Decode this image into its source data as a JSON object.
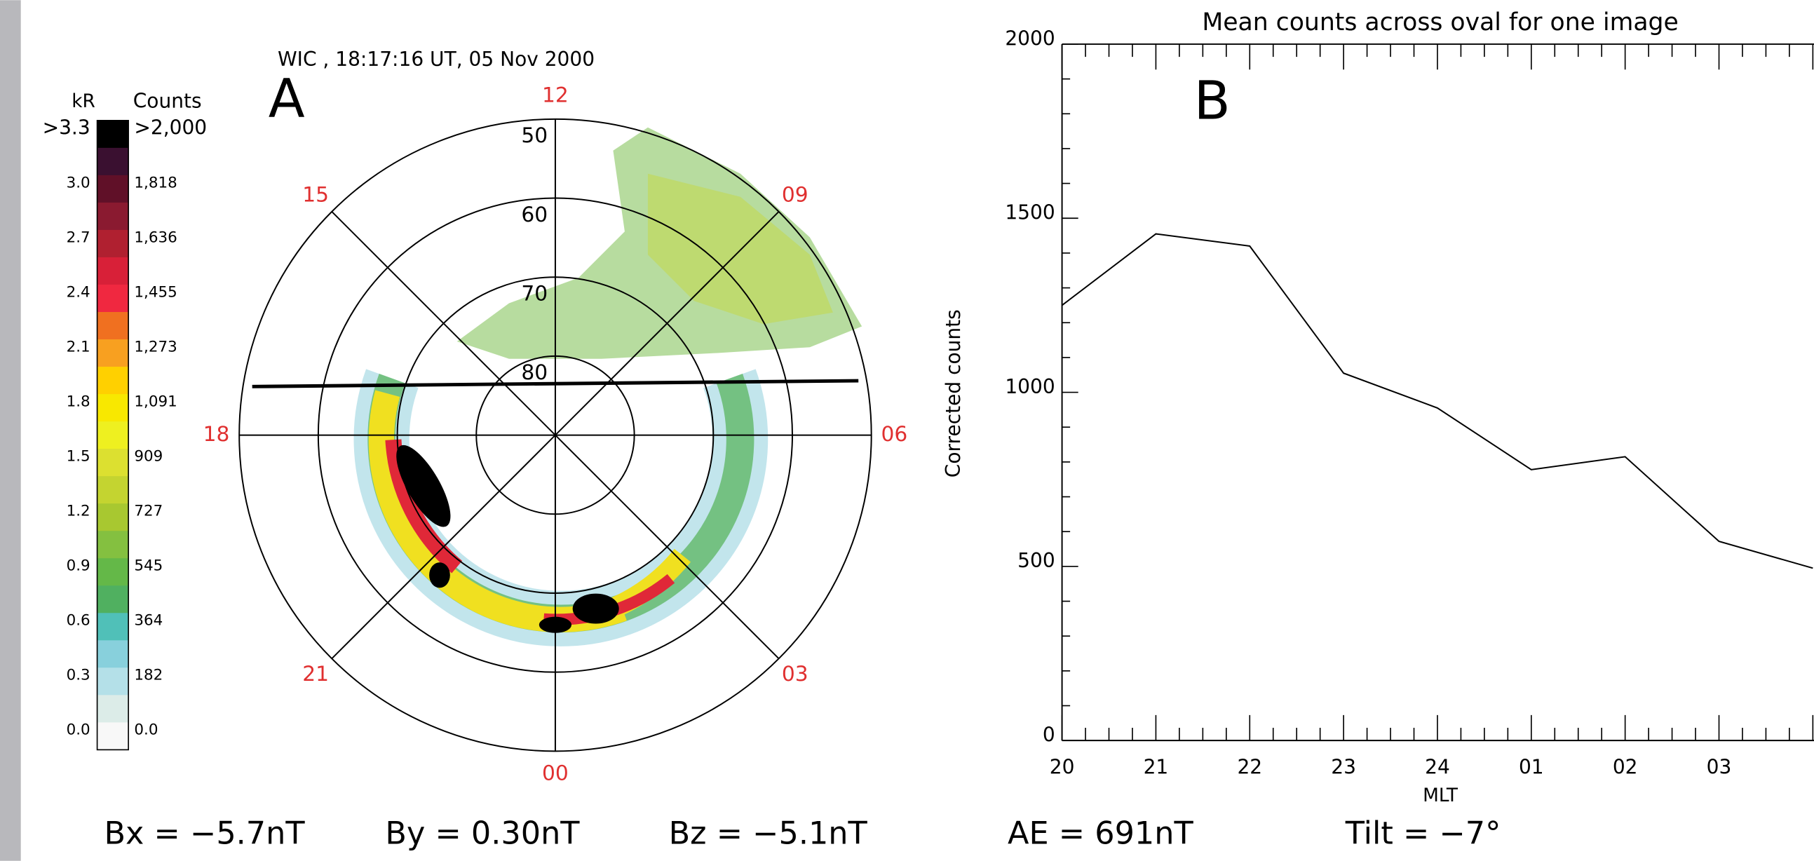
{
  "panel_a": {
    "title": "WIC , 18:17:16 UT, 05 Nov 2000",
    "letter": "A",
    "colorbar": {
      "kr_header": "kR",
      "counts_header": "Counts",
      "kr_labels": [
        ">3.3",
        "3.0",
        "2.7",
        "2.4",
        "2.1",
        "1.8",
        "1.5",
        "1.2",
        "0.9",
        "0.6",
        "0.3",
        "0.0"
      ],
      "count_labels": [
        ">2,000",
        "1,818",
        "1,636",
        "1,455",
        "1,273",
        "1,091",
        "909",
        "727",
        "545",
        "364",
        "182",
        "0.0"
      ],
      "colors": [
        "#000000",
        "#3a1030",
        "#601028",
        "#8a1a30",
        "#b02030",
        "#d82038",
        "#f02840",
        "#f07020",
        "#f8a020",
        "#ffd000",
        "#f8e800",
        "#eef020",
        "#dce030",
        "#c4d430",
        "#a8c830",
        "#84c040",
        "#64b848",
        "#50b060",
        "#50c0b8",
        "#88d0dc",
        "#b4e0e8",
        "#dcece8",
        "#f8f8f8"
      ]
    },
    "latitude_labels": [
      "50",
      "60",
      "70",
      "80"
    ],
    "mlt_labels": [
      "00",
      "03",
      "06",
      "09",
      "12",
      "15",
      "18",
      "21"
    ]
  },
  "chart_data": {
    "type": "line",
    "title": "Mean counts across oval for one image",
    "annotation": "B",
    "xlabel": "MLT",
    "ylabel": "Corrected counts",
    "categories": [
      "20",
      "21",
      "22",
      "23",
      "24",
      "01",
      "02",
      "03",
      null
    ],
    "values": [
      1250,
      1455,
      1420,
      1055,
      955,
      778,
      815,
      572,
      495
    ],
    "color": "#000000",
    "ylim": [
      0,
      2000
    ],
    "yticks": [
      0,
      500,
      1000,
      1500,
      2000
    ]
  },
  "footer": {
    "bx": "Bx = −5.7nT",
    "by": "By = 0.30nT",
    "bz": "Bz = −5.1nT",
    "ae": "AE = 691nT",
    "tilt": "Tilt = −7°"
  }
}
